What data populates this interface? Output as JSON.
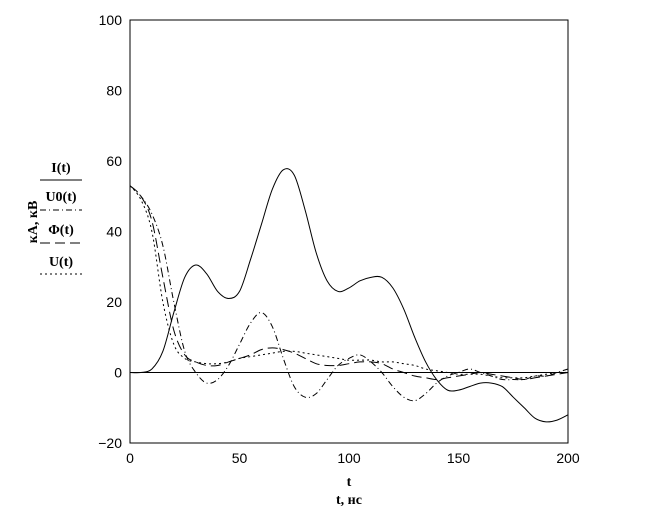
{
  "chart_data": {
    "type": "line",
    "xlabel": "t",
    "xlabel_sub": "t, нс",
    "ylabel": "кА, кВ",
    "xlim": [
      0,
      200
    ],
    "ylim": [
      -20,
      100
    ],
    "xticks": [
      0,
      50,
      100,
      150,
      200
    ],
    "yticks": [
      -20,
      0,
      20,
      40,
      60,
      80,
      100
    ],
    "zero_line": true,
    "legend": "left, stacked vertically beside the y axis label",
    "series": [
      {
        "name": "I(t)",
        "style": "solid",
        "x": [
          0,
          5,
          10,
          15,
          20,
          25,
          30,
          35,
          40,
          45,
          50,
          55,
          60,
          65,
          70,
          75,
          80,
          85,
          90,
          95,
          100,
          105,
          110,
          115,
          120,
          125,
          130,
          135,
          140,
          145,
          150,
          155,
          160,
          165,
          170,
          175,
          180,
          185,
          190,
          195,
          200
        ],
        "y": [
          0,
          0,
          1,
          6,
          17,
          27,
          30.5,
          28,
          23,
          21,
          23,
          32,
          42,
          52,
          57.5,
          56,
          46,
          34,
          26,
          23,
          24,
          26,
          27,
          27,
          24,
          18,
          10,
          3,
          -2,
          -5,
          -5,
          -4,
          -3,
          -3,
          -4,
          -7,
          -10,
          -13,
          -14,
          -13.5,
          -12
        ]
      },
      {
        "name": "U0(t)",
        "style": "dash-dot",
        "x": [
          0,
          5,
          10,
          15,
          20,
          25,
          30,
          35,
          40,
          45,
          50,
          55,
          60,
          65,
          70,
          75,
          80,
          85,
          90,
          95,
          100,
          105,
          110,
          115,
          120,
          125,
          130,
          135,
          140,
          145,
          150,
          155,
          160,
          165,
          170,
          175,
          180,
          185,
          190,
          195,
          200
        ],
        "y": [
          53,
          50,
          45,
          36,
          20,
          6,
          0,
          -3,
          -2,
          2,
          8,
          14,
          17,
          13,
          4,
          -4,
          -7,
          -6,
          -2,
          2,
          4,
          5,
          3,
          0,
          -4,
          -7,
          -8,
          -6,
          -3,
          -1,
          0,
          1,
          0,
          -1,
          -2,
          -2,
          -2,
          -1,
          -1,
          0,
          1
        ]
      },
      {
        "name": "Φ(t)",
        "style": "long-dash",
        "x": [
          0,
          5,
          10,
          15,
          20,
          25,
          30,
          35,
          40,
          45,
          50,
          55,
          60,
          65,
          70,
          75,
          80,
          85,
          90,
          95,
          100,
          105,
          110,
          115,
          120,
          125,
          130,
          135,
          140,
          145,
          150,
          155,
          160,
          165,
          170,
          175,
          180,
          185,
          190,
          195,
          200
        ],
        "y": [
          53,
          50,
          43,
          27,
          12,
          5,
          3,
          2,
          2,
          3,
          4,
          5,
          6.5,
          7,
          6.5,
          5.5,
          4,
          2.5,
          2,
          2,
          2.5,
          3,
          3,
          2.5,
          1,
          0,
          -1,
          -1.5,
          -2,
          -1.5,
          -1,
          -0.5,
          0,
          -0.5,
          -1,
          -1.5,
          -2,
          -1.5,
          -1,
          -0.5,
          0
        ]
      },
      {
        "name": "U(t)",
        "style": "dotted",
        "x": [
          0,
          5,
          10,
          15,
          20,
          25,
          30,
          35,
          40,
          45,
          50,
          55,
          60,
          65,
          70,
          75,
          80,
          85,
          90,
          95,
          100,
          105,
          110,
          115,
          120,
          125,
          130,
          135,
          140,
          145,
          150,
          155,
          160,
          165,
          170,
          175,
          180,
          185,
          190,
          195,
          200
        ],
        "y": [
          53,
          49,
          40,
          20,
          8,
          4,
          3,
          2.5,
          2.5,
          3,
          4,
          4.5,
          5,
          5.5,
          6,
          6,
          5.5,
          5,
          4.5,
          4,
          3.5,
          3.5,
          3.5,
          3,
          3,
          2.5,
          2,
          1,
          0.5,
          0,
          -0.5,
          -0.5,
          -0.5,
          -1,
          -1.5,
          -1.5,
          -1.5,
          -1,
          -0.5,
          0,
          0
        ]
      }
    ]
  }
}
